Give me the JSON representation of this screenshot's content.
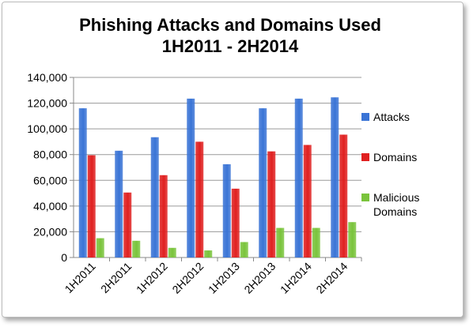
{
  "chart_data": {
    "type": "bar",
    "title_line1": "Phishing Attacks and Domains Used",
    "title_line2": "1H2011 - 2H2014",
    "categories": [
      "1H2011",
      "2H2011",
      "1H2012",
      "2H2012",
      "1H2013",
      "2H2013",
      "1H2014",
      "2H2014"
    ],
    "series": [
      {
        "name": "Attacks",
        "color": "#3a74d6",
        "values": [
          116000,
          83000,
          93500,
          123500,
          72500,
          116000,
          123500,
          124500
        ]
      },
      {
        "name": "Domains",
        "color": "#e02020",
        "values": [
          79500,
          50500,
          64000,
          90000,
          53500,
          82500,
          87500,
          95500
        ]
      },
      {
        "name": "Malicious Domains",
        "color": "#7ac43c",
        "values": [
          15000,
          13000,
          7500,
          5500,
          12000,
          23000,
          23000,
          27500
        ]
      }
    ],
    "ylim": [
      0,
      140000
    ],
    "yticks": [
      "0",
      "20,000",
      "40,000",
      "60,000",
      "80,000",
      "100,000",
      "120,000",
      "140,000"
    ],
    "ytick_values": [
      0,
      20000,
      40000,
      60000,
      80000,
      100000,
      120000,
      140000
    ],
    "grid": true,
    "legend_position": "right"
  }
}
